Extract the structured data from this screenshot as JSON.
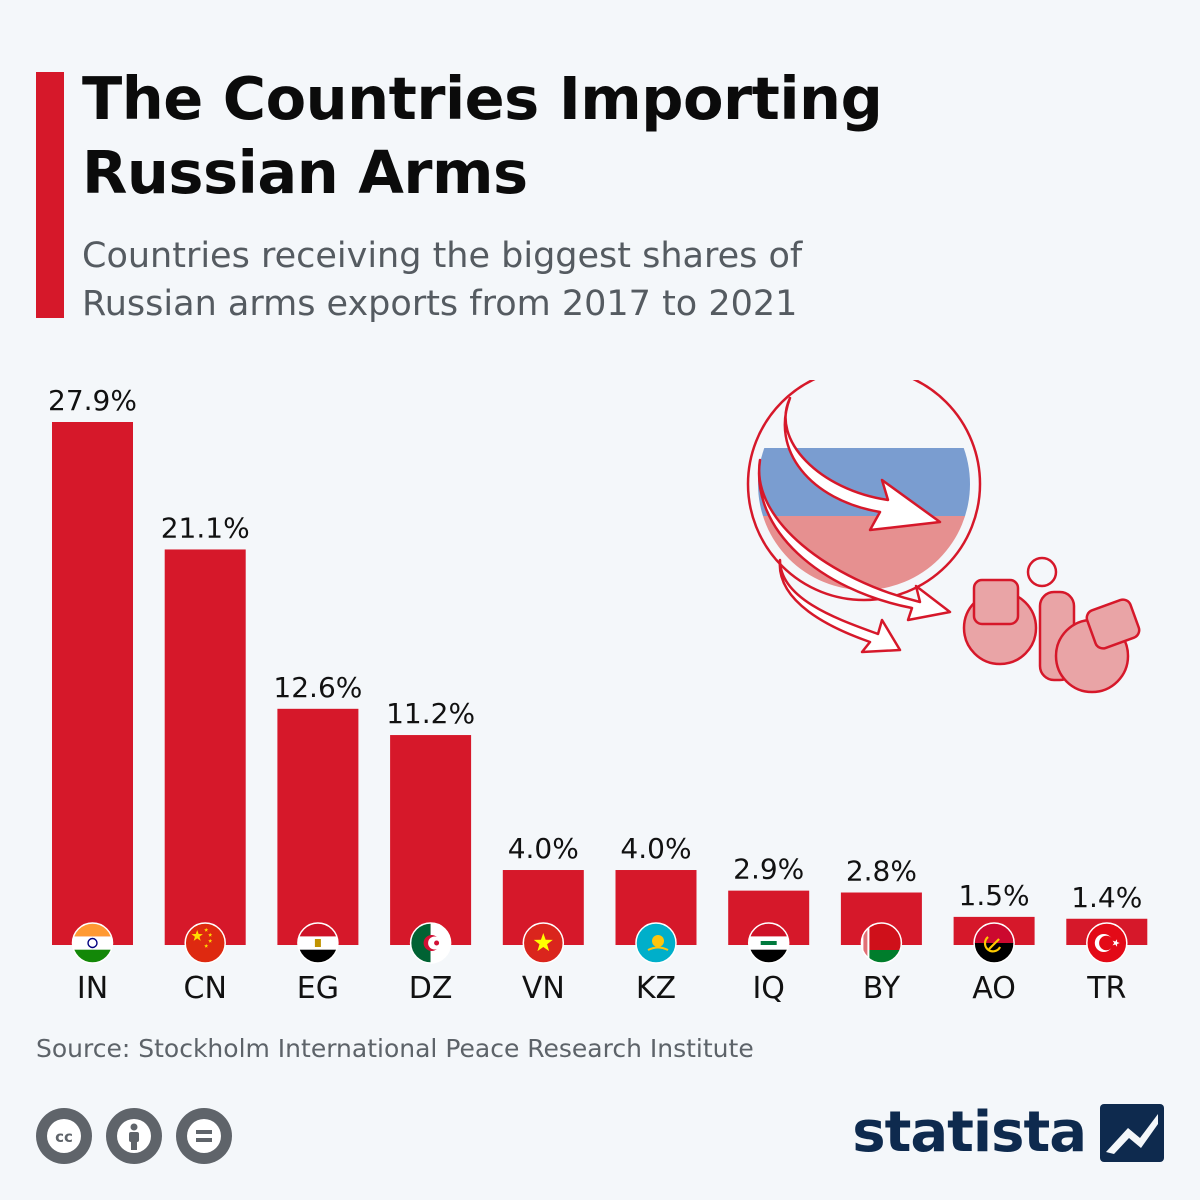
{
  "header": {
    "title": "The Countries Importing Russian Arms",
    "subtitle": "Countries receiving the biggest shares of Russian arms exports from 2017 to 2021"
  },
  "colors": {
    "bar": "#d6182a",
    "accent": "#d6182a",
    "background": "#f4f7fa",
    "brand": "#0e2a4e"
  },
  "chart_data": {
    "type": "bar",
    "categories": [
      "IN",
      "CN",
      "EG",
      "DZ",
      "VN",
      "KZ",
      "IQ",
      "BY",
      "AO",
      "TR"
    ],
    "values": [
      27.9,
      21.1,
      12.6,
      11.2,
      4.0,
      4.0,
      2.9,
      2.8,
      1.5,
      1.4
    ],
    "value_labels": [
      "27.9%",
      "21.1%",
      "12.6%",
      "11.2%",
      "4.0%",
      "4.0%",
      "2.9%",
      "2.8%",
      "1.5%",
      "1.4%"
    ],
    "flag_icons": [
      "flag-india-icon",
      "flag-china-icon",
      "flag-egypt-icon",
      "flag-algeria-icon",
      "flag-vietnam-icon",
      "flag-kazakhstan-icon",
      "flag-iraq-icon",
      "flag-belarus-icon",
      "flag-angola-icon",
      "flag-turkey-icon"
    ],
    "unit": "%",
    "ylim": [
      0,
      27.9
    ],
    "grid": false,
    "legend": "none"
  },
  "footer": {
    "source": "Source: Stockholm International Peace Research Institute",
    "brand": "statista",
    "license_icons": [
      "cc-icon",
      "attribution-icon",
      "no-derivatives-icon"
    ]
  },
  "illustration": {
    "icons": [
      "russia-flag-globe-icon",
      "export-arrows-icon",
      "grenades-icon"
    ]
  }
}
